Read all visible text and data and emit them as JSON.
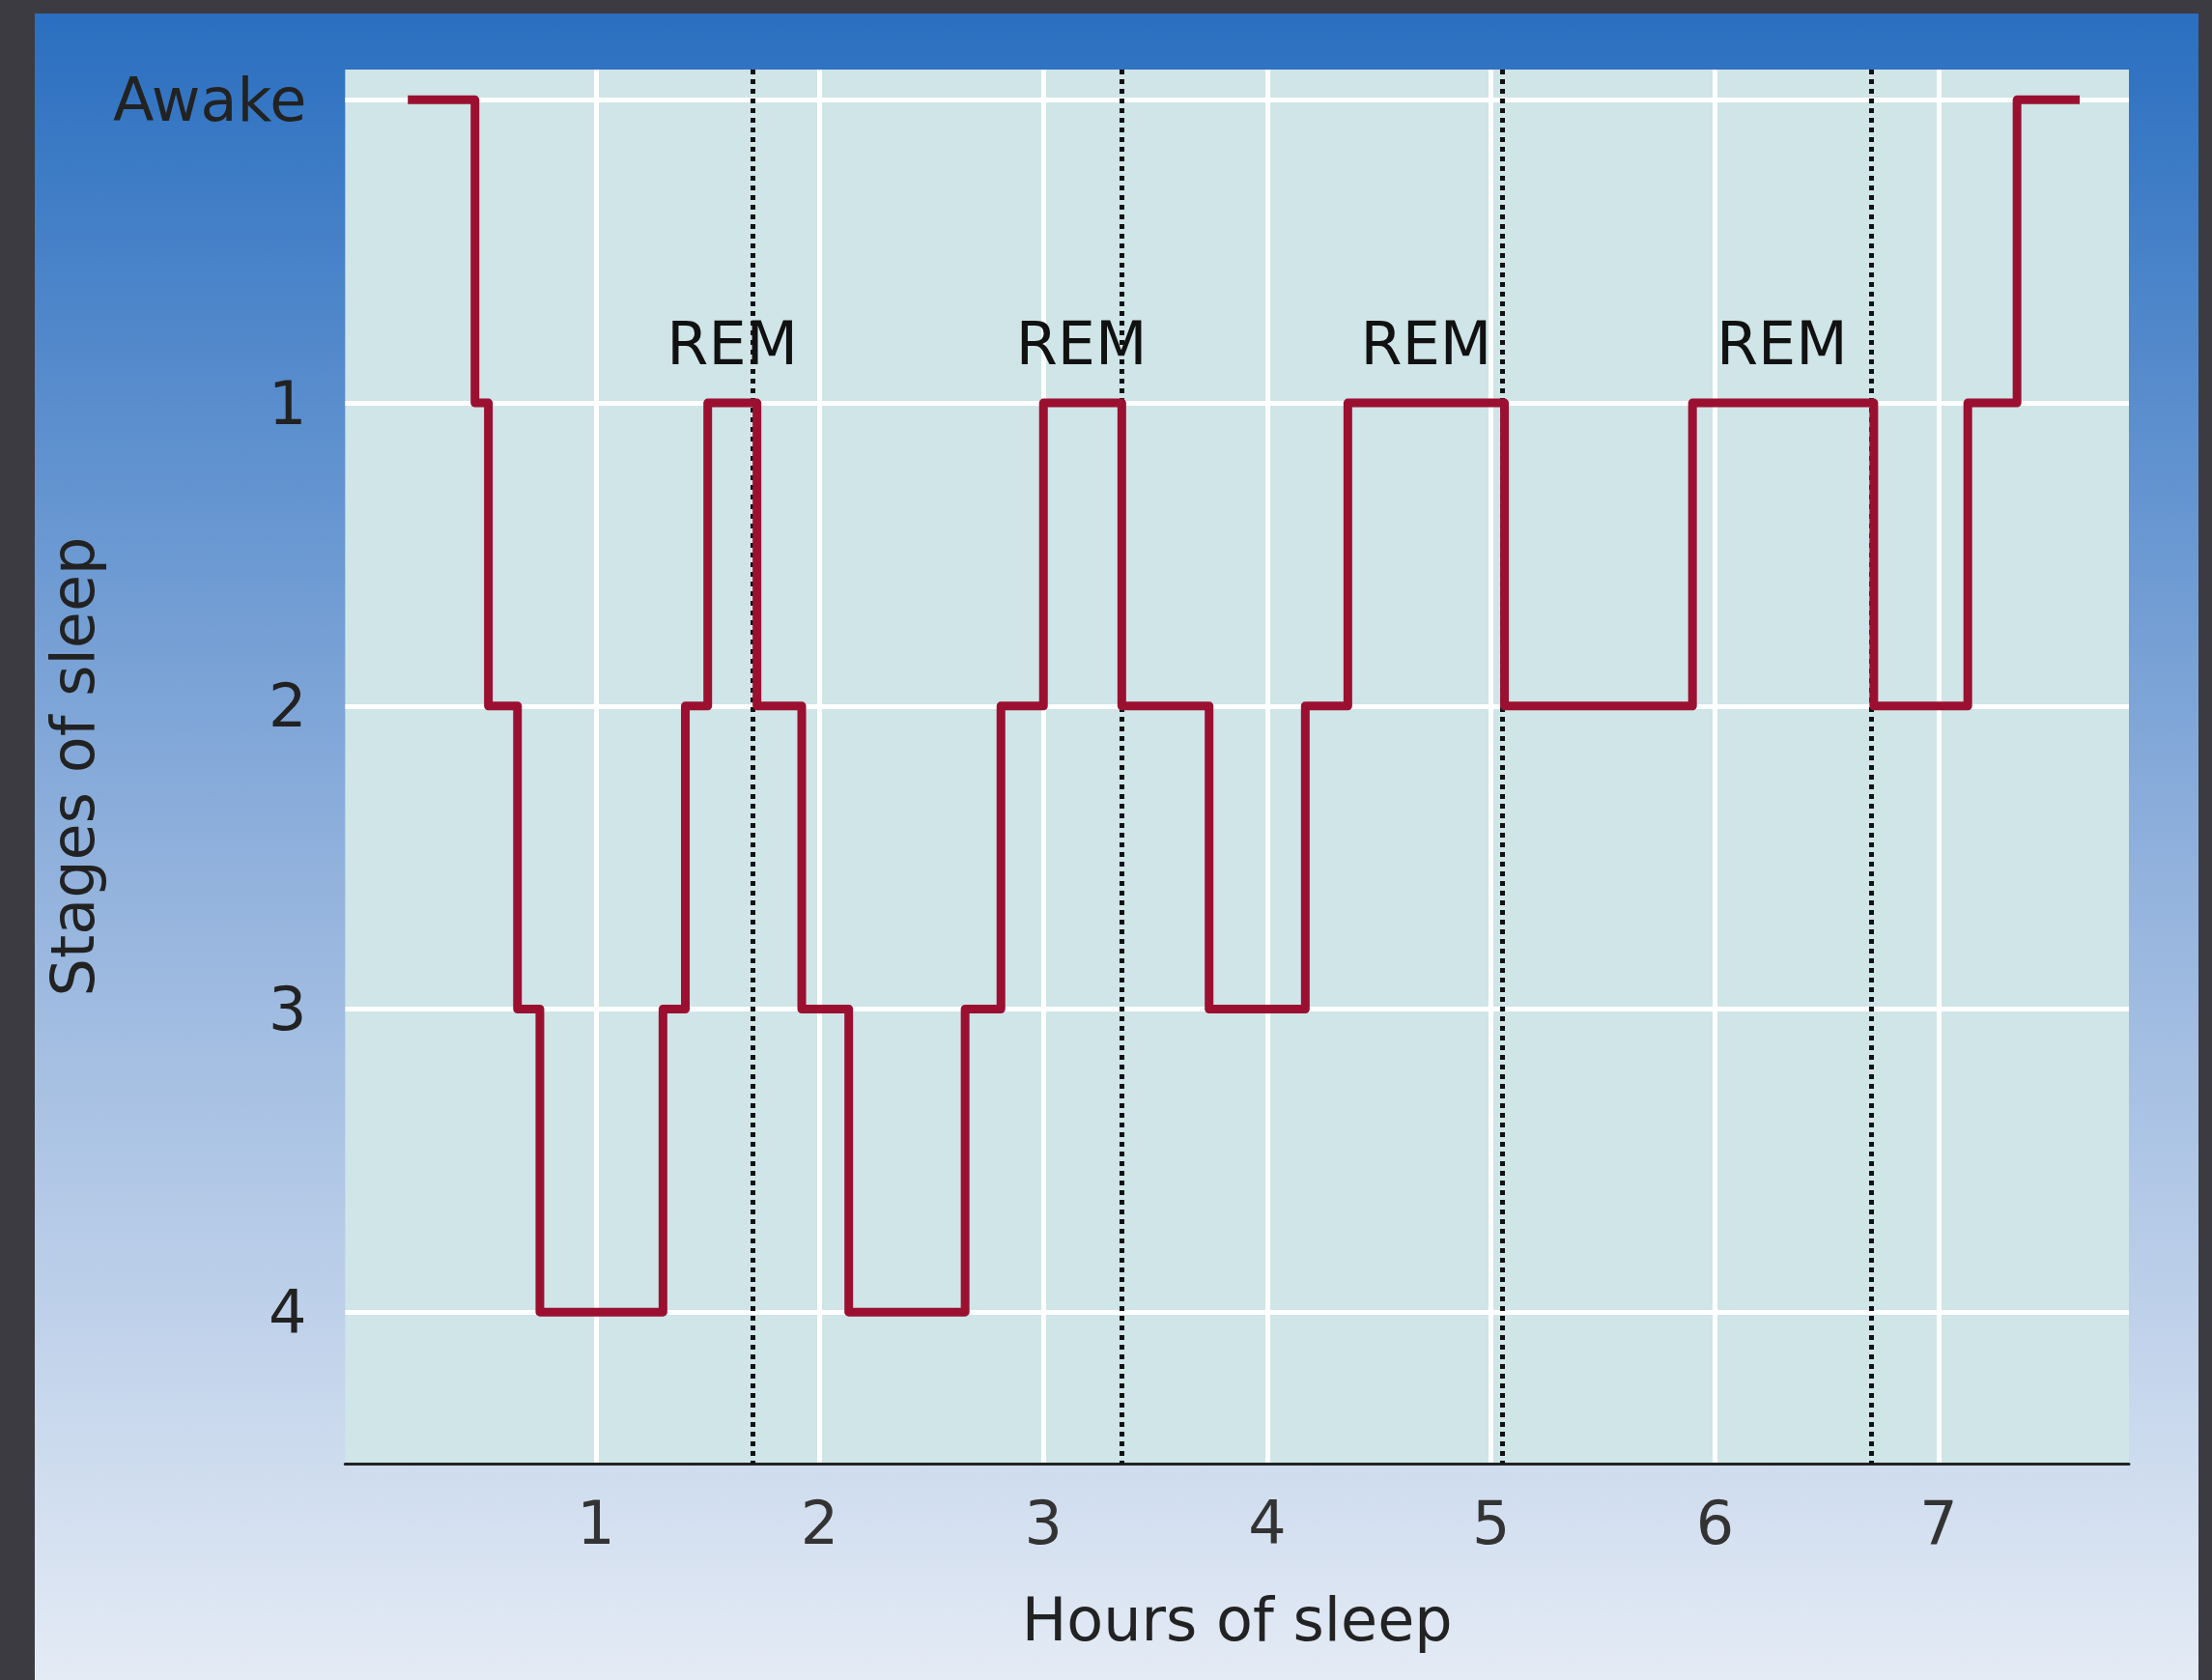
{
  "chart_data": {
    "type": "step",
    "xlabel": "Hours of sleep",
    "ylabel": "Stages of sleep",
    "x": [
      0.16,
      0.46,
      0.52,
      0.65,
      0.75,
      1.3,
      1.4,
      1.5,
      1.72,
      1.92,
      2.13,
      2.65,
      2.81,
      3.0,
      3.35,
      3.74,
      4.17,
      4.36,
      5.06,
      5.9,
      6.71,
      7.13,
      7.35,
      7.63
    ],
    "series": [
      {
        "color": "#9b1030",
        "values": [
          0,
          1,
          2,
          3,
          4,
          3,
          2,
          1,
          2,
          3,
          4,
          3,
          2,
          1,
          2,
          3,
          2,
          1,
          2,
          1,
          2,
          1,
          0,
          0
        ]
      }
    ],
    "xlim": [
      -0.12,
      7.85
    ],
    "xticks": [
      1,
      2,
      3,
      4,
      5,
      6,
      7
    ],
    "ylim": [
      4.5,
      -0.1
    ],
    "yticks": [
      {
        "value": 0,
        "label": "Awake"
      },
      1,
      2,
      3,
      4
    ],
    "grid": true,
    "marker": "none",
    "line_style": "solid",
    "ref_lines": [
      {
        "axis": "x",
        "value": 1.7,
        "line_style": "dotted",
        "color": "#111111"
      },
      {
        "axis": "x",
        "value": 3.35,
        "line_style": "dotted",
        "color": "#111111"
      },
      {
        "axis": "x",
        "value": 5.05,
        "line_style": "dotted",
        "color": "#111111"
      },
      {
        "axis": "x",
        "value": 6.7,
        "line_style": "dotted",
        "color": "#111111"
      }
    ],
    "annotations": [
      {
        "text": "REM",
        "x": 1.61,
        "y": 1
      },
      {
        "text": "REM",
        "x": 3.17,
        "y": 1
      },
      {
        "text": "REM",
        "x": 4.71,
        "y": 1
      },
      {
        "text": "REM",
        "x": 6.3,
        "y": 1
      }
    ]
  }
}
